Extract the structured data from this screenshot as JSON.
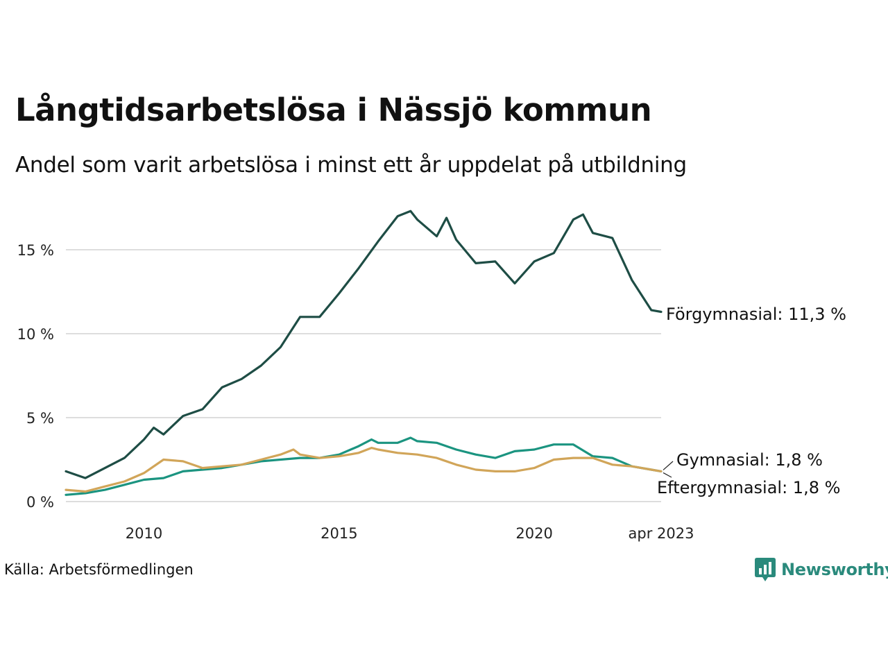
{
  "chart_data": {
    "type": "line",
    "title": "Långtidsarbetslösa i Nässjö kommun",
    "subtitle": "Andel som varit arbetslösa i minst ett år uppdelat på utbildning",
    "source": "Källa: Arbetsförmedlingen",
    "ylim": [
      0,
      17.5
    ],
    "y_ticks": [
      0,
      5,
      10,
      15
    ],
    "y_tick_labels": [
      "0 %",
      "5 %",
      "10 %",
      "15 %"
    ],
    "x_ticks": [
      2010,
      2015,
      2020,
      2023.25
    ],
    "x_tick_labels": [
      "2010",
      "2015",
      "2020",
      "apr 2023"
    ],
    "xlim": [
      2008.0,
      2023.25
    ],
    "grid": "horizontal",
    "legend": "end-labels",
    "series": [
      {
        "name": "Förgymnasial",
        "end_label": "Förgymnasial: 11,3 %",
        "color": "#1e4d45",
        "x": [
          2008.0,
          2008.5,
          2009.0,
          2009.5,
          2010.0,
          2010.25,
          2010.5,
          2011.0,
          2011.5,
          2012.0,
          2012.5,
          2013.0,
          2013.5,
          2014.0,
          2014.5,
          2015.0,
          2015.5,
          2016.0,
          2016.5,
          2016.83,
          2017.0,
          2017.5,
          2017.75,
          2018.0,
          2018.5,
          2019.0,
          2019.5,
          2020.0,
          2020.5,
          2021.0,
          2021.25,
          2021.5,
          2022.0,
          2022.5,
          2023.0,
          2023.25
        ],
        "values": [
          1.8,
          1.4,
          2.0,
          2.6,
          3.7,
          4.4,
          4.0,
          5.1,
          5.5,
          6.8,
          7.3,
          8.1,
          9.2,
          11.0,
          11.0,
          12.4,
          13.9,
          15.5,
          17.0,
          17.3,
          16.8,
          15.8,
          16.9,
          15.6,
          14.2,
          14.3,
          13.0,
          14.3,
          14.8,
          16.8,
          17.1,
          16.0,
          15.7,
          13.2,
          11.4,
          11.3
        ]
      },
      {
        "name": "Gymnasial",
        "end_label": "Gymnasial:  1,8 %",
        "color": "#1b9480",
        "x": [
          2008.0,
          2008.5,
          2009.0,
          2009.5,
          2010.0,
          2010.5,
          2011.0,
          2011.5,
          2012.0,
          2012.5,
          2013.0,
          2013.5,
          2014.0,
          2014.5,
          2015.0,
          2015.5,
          2015.83,
          2016.0,
          2016.5,
          2016.83,
          2017.0,
          2017.5,
          2018.0,
          2018.5,
          2019.0,
          2019.5,
          2020.0,
          2020.5,
          2021.0,
          2021.5,
          2022.0,
          2022.5,
          2023.0,
          2023.25
        ],
        "values": [
          0.4,
          0.5,
          0.7,
          1.0,
          1.3,
          1.4,
          1.8,
          1.9,
          2.0,
          2.2,
          2.4,
          2.5,
          2.6,
          2.6,
          2.8,
          3.3,
          3.7,
          3.5,
          3.5,
          3.8,
          3.6,
          3.5,
          3.1,
          2.8,
          2.6,
          3.0,
          3.1,
          3.4,
          3.4,
          2.7,
          2.6,
          2.1,
          1.9,
          1.8
        ]
      },
      {
        "name": "Eftergymnasial",
        "end_label": "Eftergymnasial:  1,8 %",
        "color": "#d1a559",
        "x": [
          2008.0,
          2008.5,
          2009.0,
          2009.5,
          2010.0,
          2010.5,
          2011.0,
          2011.5,
          2012.0,
          2012.5,
          2013.0,
          2013.5,
          2013.83,
          2014.0,
          2014.5,
          2015.0,
          2015.5,
          2015.83,
          2016.0,
          2016.5,
          2017.0,
          2017.5,
          2018.0,
          2018.5,
          2019.0,
          2019.5,
          2020.0,
          2020.5,
          2021.0,
          2021.5,
          2022.0,
          2022.5,
          2023.0,
          2023.25
        ],
        "values": [
          0.7,
          0.6,
          0.9,
          1.2,
          1.7,
          2.5,
          2.4,
          2.0,
          2.1,
          2.2,
          2.5,
          2.8,
          3.1,
          2.8,
          2.6,
          2.7,
          2.9,
          3.2,
          3.1,
          2.9,
          2.8,
          2.6,
          2.2,
          1.9,
          1.8,
          1.8,
          2.0,
          2.5,
          2.6,
          2.6,
          2.2,
          2.1,
          1.9,
          1.8
        ]
      }
    ]
  },
  "brand": {
    "name": "Newsworthy",
    "icon": "newsworthy-logo-icon",
    "color": "#2a8a7c"
  },
  "colors": {
    "grid": "#dddddd",
    "background": "#ffffff"
  }
}
